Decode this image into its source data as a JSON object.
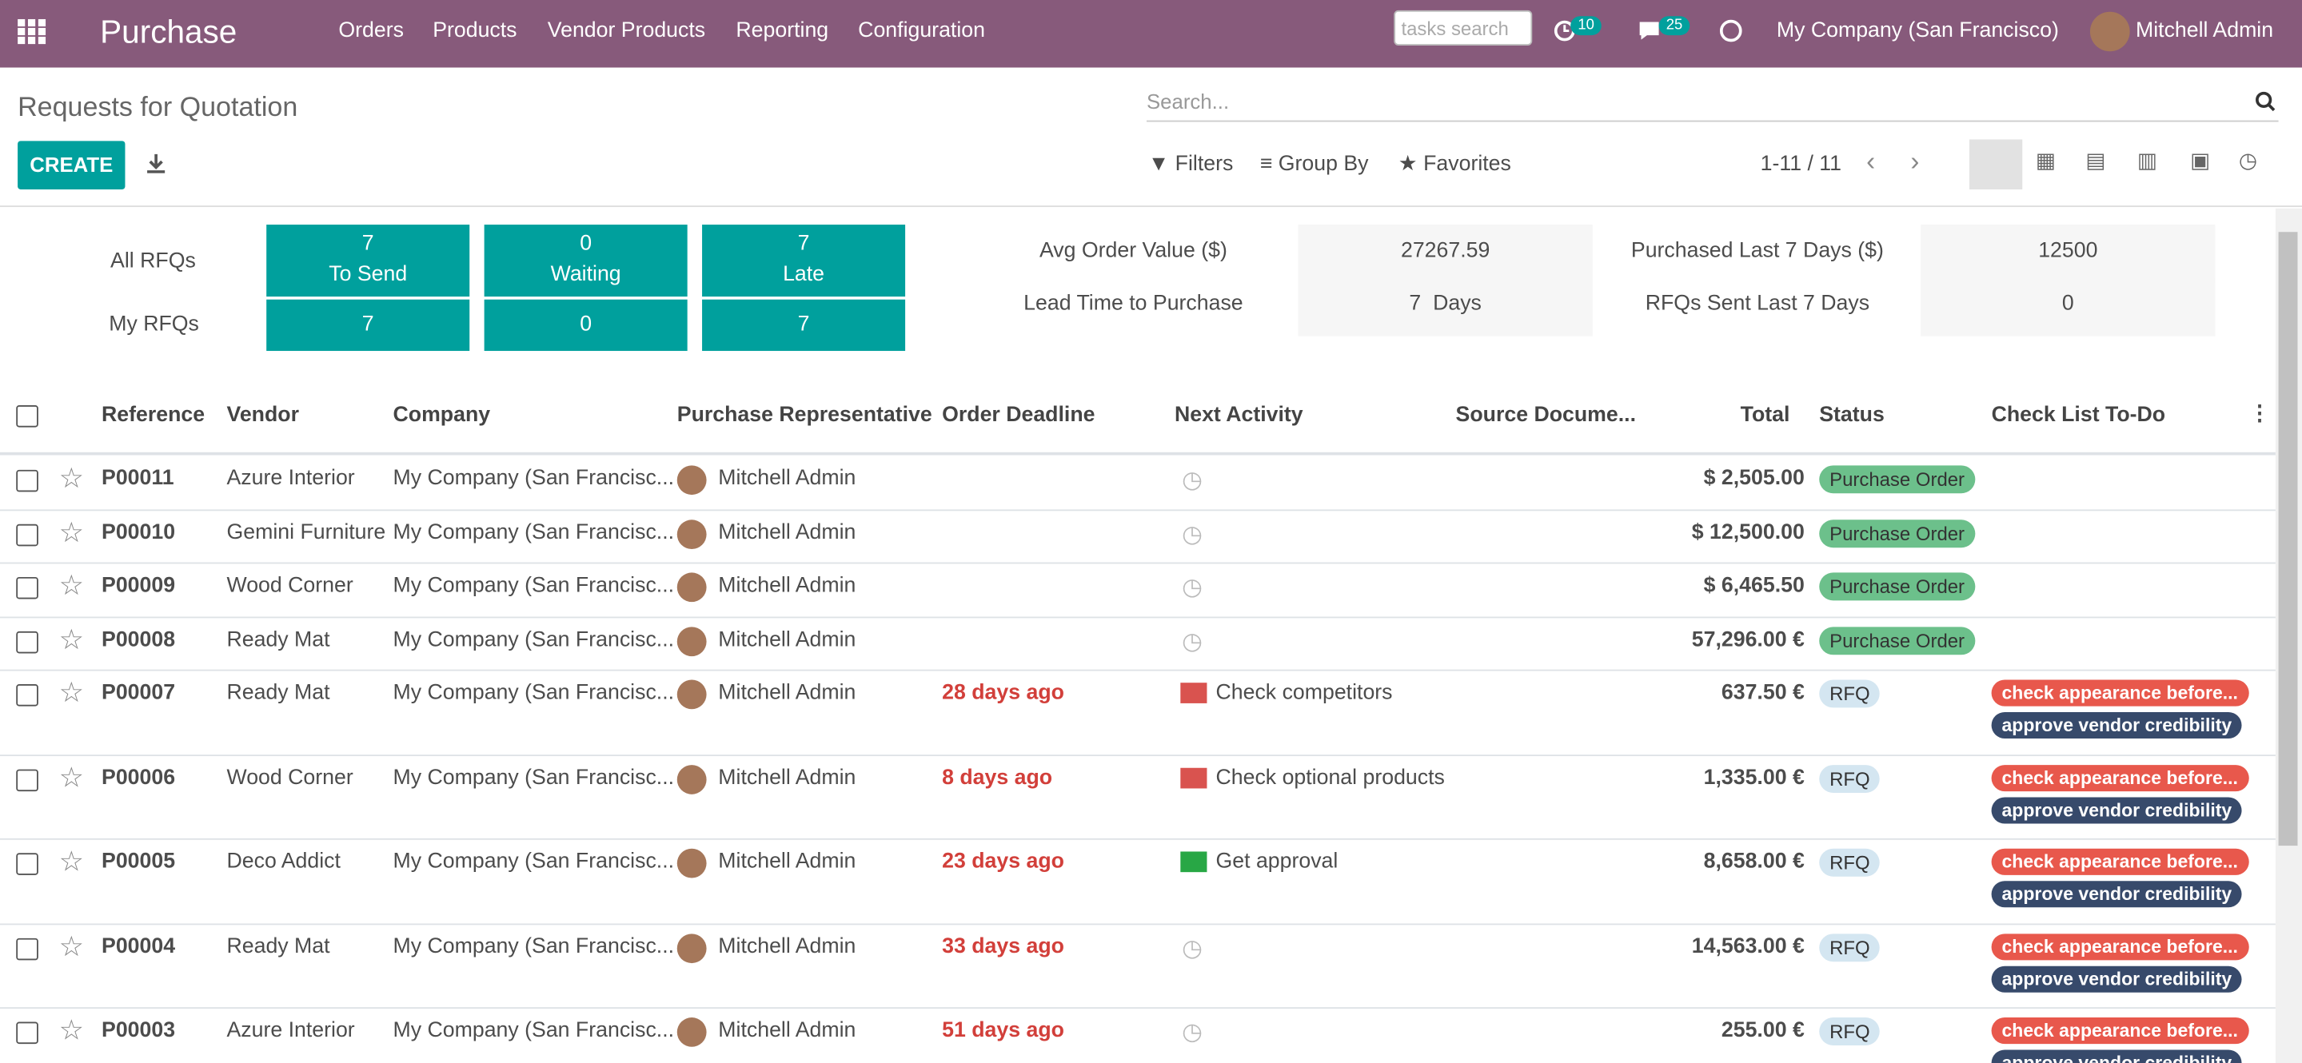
{
  "navbar": {
    "app": "Purchase",
    "menus": [
      "Orders",
      "Products",
      "Vendor Products",
      "Reporting",
      "Configuration"
    ],
    "search_placeholder": "tasks search",
    "activity_count": "10",
    "message_count": "25",
    "company": "My Company (San Francisco)",
    "user": "Mitchell Admin"
  },
  "control_panel": {
    "breadcrumb": "Requests for Quotation",
    "search_placeholder": "Search...",
    "create": "CREATE",
    "filters": "Filters",
    "group_by": "Group By",
    "favorites": "Favorites",
    "pager": "1-11 / 11"
  },
  "dashboard": {
    "rows": [
      {
        "label": "All RFQs",
        "tiles": [
          {
            "value": "7",
            "label": "To Send"
          },
          {
            "value": "0",
            "label": "Waiting"
          },
          {
            "value": "7",
            "label": "Late"
          }
        ]
      },
      {
        "label": "My RFQs",
        "tiles": [
          {
            "value": "7"
          },
          {
            "value": "0"
          },
          {
            "value": "7"
          }
        ]
      }
    ],
    "stats": [
      {
        "label": "Avg Order Value ($)",
        "value": "27267.59"
      },
      {
        "label": "Lead Time to Purchase",
        "value": "7  Days"
      },
      {
        "label": "Purchased Last 7 Days ($)",
        "value": "12500"
      },
      {
        "label": "RFQs Sent Last 7 Days",
        "value": "0"
      }
    ]
  },
  "table": {
    "columns": [
      "Reference",
      "Vendor",
      "Company",
      "Purchase Representative",
      "Order Deadline",
      "Next Activity",
      "Source Docume...",
      "Total",
      "Status",
      "Check List To-Do"
    ],
    "rows": [
      {
        "reference": "P00011",
        "vendor": "Azure Interior",
        "company": "My Company (San Francisc...",
        "representative": "Mitchell Admin",
        "total": "$ 2,505.00",
        "status": "Purchase Order",
        "status_color": "#6cc08b"
      },
      {
        "reference": "P00010",
        "vendor": "Gemini Furniture",
        "company": "My Company (San Francisc...",
        "representative": "Mitchell Admin",
        "total": "$ 12,500.00",
        "status": "Purchase Order",
        "status_color": "#6cc08b"
      },
      {
        "reference": "P00009",
        "vendor": "Wood Corner",
        "company": "My Company (San Francisc...",
        "representative": "Mitchell Admin",
        "total": "$ 6,465.50",
        "status": "Purchase Order",
        "status_color": "#6cc08b"
      },
      {
        "reference": "P00008",
        "vendor": "Ready Mat",
        "company": "My Company (San Francisc...",
        "representative": "Mitchell Admin",
        "total": "57,296.00 €",
        "status": "Purchase Order",
        "status_color": "#6cc08b"
      },
      {
        "reference": "P00007",
        "vendor": "Ready Mat",
        "company": "My Company (San Francisc...",
        "representative": "Mitchell Admin",
        "deadline": "28 days ago",
        "activity": "Check competitors",
        "activity_color": "#d9534f",
        "total": "637.50 €",
        "status": "RFQ",
        "status_color": "#d4e6f1",
        "tags": [
          "check appearance before...",
          "approve vendor credibility"
        ]
      },
      {
        "reference": "P00006",
        "vendor": "Wood Corner",
        "company": "My Company (San Francisc...",
        "representative": "Mitchell Admin",
        "deadline": "8 days ago",
        "activity": "Check optional products",
        "activity_color": "#d9534f",
        "total": "1,335.00 €",
        "status": "RFQ",
        "status_color": "#d4e6f1",
        "tags": [
          "check appearance before...",
          "approve vendor credibility"
        ]
      },
      {
        "reference": "P00005",
        "vendor": "Deco Addict",
        "company": "My Company (San Francisc...",
        "representative": "Mitchell Admin",
        "deadline": "23 days ago",
        "activity": "Get approval",
        "activity_color": "#28a745",
        "total": "8,658.00 €",
        "status": "RFQ",
        "status_color": "#d4e6f1",
        "tags": [
          "check appearance before...",
          "approve vendor credibility"
        ]
      },
      {
        "reference": "P00004",
        "vendor": "Ready Mat",
        "company": "My Company (San Francisc...",
        "representative": "Mitchell Admin",
        "deadline": "33 days ago",
        "total": "14,563.00 €",
        "status": "RFQ",
        "status_color": "#d4e6f1",
        "tags": [
          "check appearance before...",
          "approve vendor credibility"
        ]
      },
      {
        "reference": "P00003",
        "vendor": "Azure Interior",
        "company": "My Company (San Francisc...",
        "representative": "Mitchell Admin",
        "deadline": "51 days ago",
        "total": "255.00 €",
        "status": "RFQ",
        "status_color": "#d4e6f1",
        "tags": [
          "check appearance before...",
          "approve vendor credibility"
        ]
      }
    ]
  }
}
